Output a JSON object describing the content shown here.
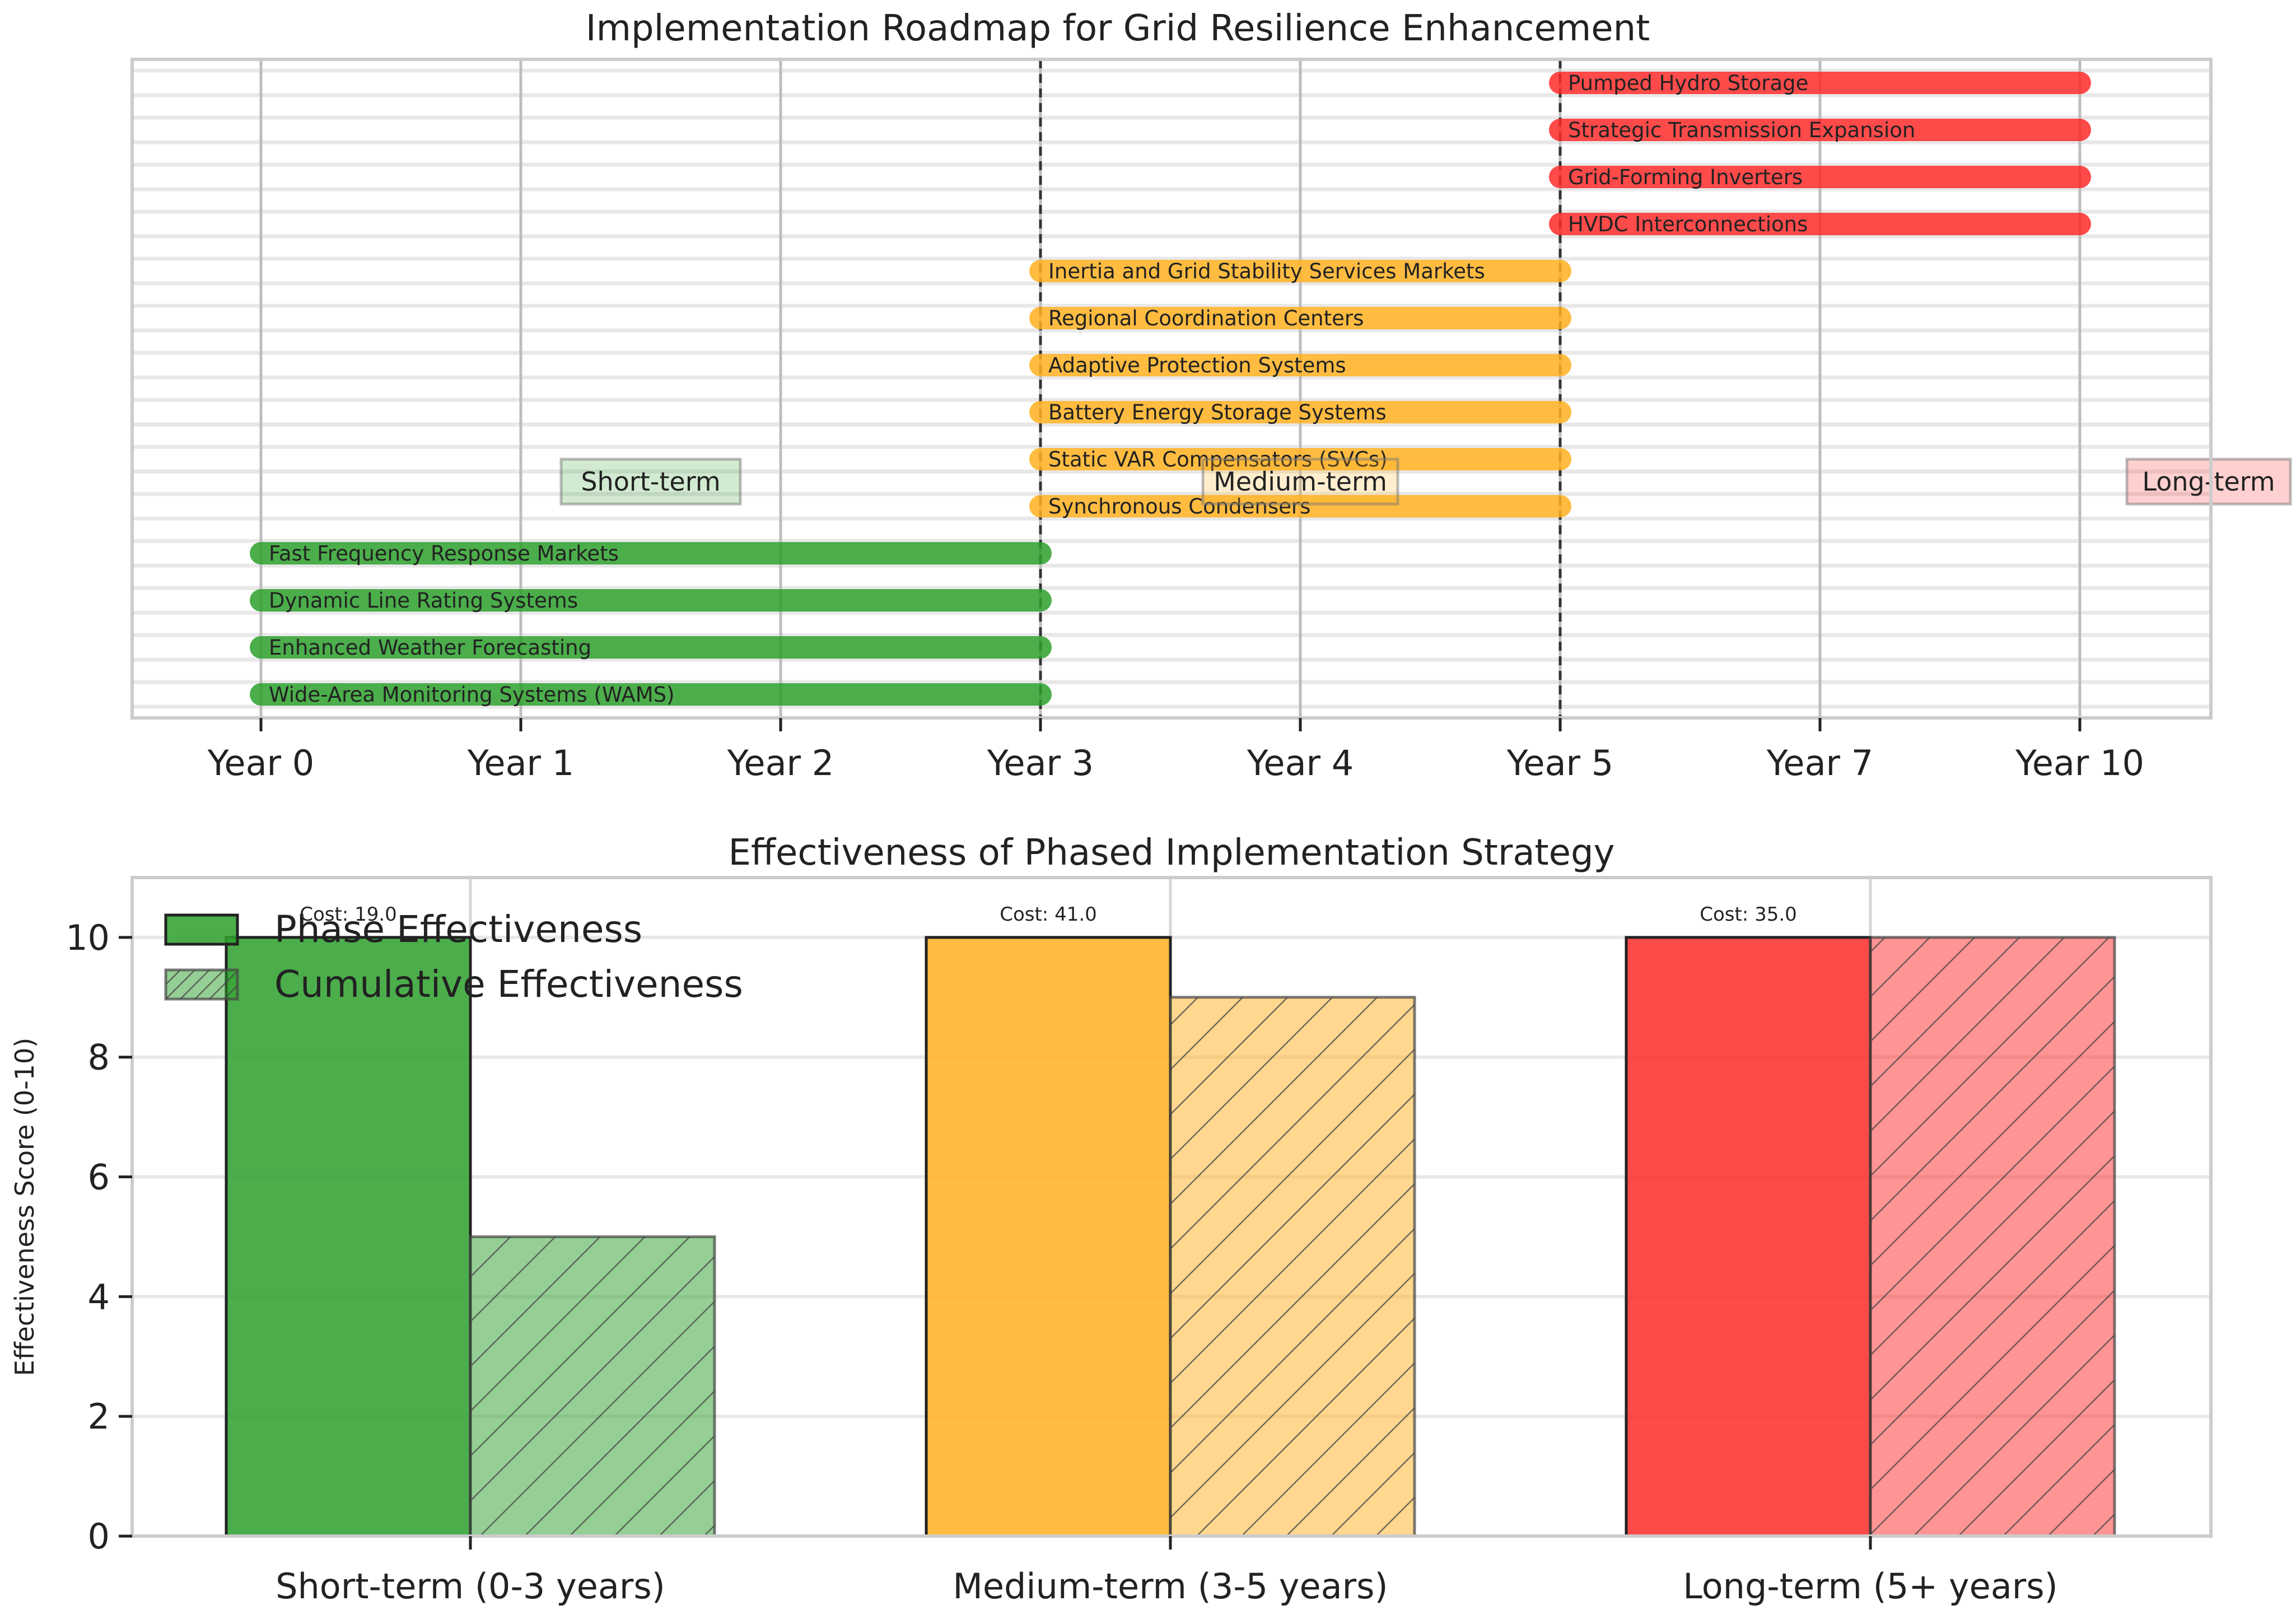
{
  "chart_data": [
    {
      "type": "gantt",
      "title": "Implementation Roadmap for Grid Resilience Enhancement",
      "x_ticks": [
        "Year 0",
        "Year 1",
        "Year 2",
        "Year 3",
        "Year 4",
        "Year 5",
        "Year 7",
        "Year 10"
      ],
      "phase_boundaries": [
        "Year 3",
        "Year 5"
      ],
      "phases": [
        {
          "label": "Short-term",
          "color": "#2ca02c"
        },
        {
          "label": "Medium-term",
          "color": "#ffb020"
        },
        {
          "label": "Long-term",
          "color": "#ff2a2a"
        }
      ],
      "tasks": [
        {
          "label": "Wide-Area Monitoring Systems (WAMS)",
          "start": "Year 0",
          "end": "Year 3",
          "phase": 0
        },
        {
          "label": "Enhanced Weather Forecasting",
          "start": "Year 0",
          "end": "Year 3",
          "phase": 0
        },
        {
          "label": "Dynamic Line Rating Systems",
          "start": "Year 0",
          "end": "Year 3",
          "phase": 0
        },
        {
          "label": "Fast Frequency Response Markets",
          "start": "Year 0",
          "end": "Year 3",
          "phase": 0
        },
        {
          "label": "Synchronous Condensers",
          "start": "Year 3",
          "end": "Year 5",
          "phase": 1
        },
        {
          "label": "Static VAR Compensators (SVCs)",
          "start": "Year 3",
          "end": "Year 5",
          "phase": 1
        },
        {
          "label": "Battery Energy Storage Systems",
          "start": "Year 3",
          "end": "Year 5",
          "phase": 1
        },
        {
          "label": "Adaptive Protection Systems",
          "start": "Year 3",
          "end": "Year 5",
          "phase": 1
        },
        {
          "label": "Regional Coordination Centers",
          "start": "Year 3",
          "end": "Year 5",
          "phase": 1
        },
        {
          "label": "Inertia and Grid Stability Services Markets",
          "start": "Year 3",
          "end": "Year 5",
          "phase": 1
        },
        {
          "label": "HVDC Interconnections",
          "start": "Year 5",
          "end": "Year 10",
          "phase": 2
        },
        {
          "label": "Grid-Forming Inverters",
          "start": "Year 5",
          "end": "Year 10",
          "phase": 2
        },
        {
          "label": "Strategic Transmission Expansion",
          "start": "Year 5",
          "end": "Year 10",
          "phase": 2
        },
        {
          "label": "Pumped Hydro Storage",
          "start": "Year 5",
          "end": "Year 10",
          "phase": 2
        }
      ]
    },
    {
      "type": "bar",
      "title": "Effectiveness of Phased Implementation Strategy",
      "ylabel": "Effectiveness Score (0-10)",
      "ylim": [
        0,
        11
      ],
      "y_ticks": [
        0,
        2,
        4,
        6,
        8,
        10
      ],
      "categories": [
        "Short-term (0-3 years)",
        "Medium-term (3-5 years)",
        "Long-term (5+ years)"
      ],
      "category_colors": [
        "#2ca02c",
        "#ffb020",
        "#ff2a2a"
      ],
      "series": [
        {
          "name": "Phase Effectiveness",
          "values": [
            10,
            10,
            10
          ]
        },
        {
          "name": "Cumulative Effectiveness",
          "values": [
            5,
            9,
            10
          ]
        }
      ],
      "cost_labels": [
        "Cost: 19.0",
        "Cost: 41.0",
        "Cost: 35.0"
      ],
      "legend": "upper-left",
      "grid": true
    }
  ]
}
